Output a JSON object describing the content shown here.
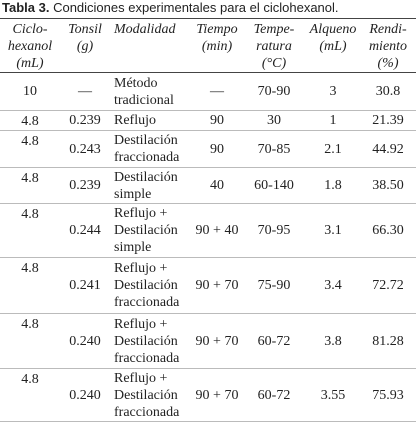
{
  "caption": {
    "label": "Tabla 3.",
    "text": "Condiciones experimentales para el ciclohexanol."
  },
  "table": {
    "headers": [
      [
        "Ciclo-",
        "hexanol",
        "(mL)"
      ],
      [
        "Tonsil",
        "(g)"
      ],
      [
        "Modalidad"
      ],
      [
        "Tiempo",
        "(min)"
      ],
      [
        "Tempe-",
        "ratura",
        "(°C)"
      ],
      [
        "Alqueno",
        "(mL)"
      ],
      [
        "Rendi-",
        "miento",
        "(%)"
      ]
    ],
    "rows": [
      [
        "10",
        "—",
        [
          "Método",
          "tradicional"
        ],
        "—",
        "70-90",
        "3",
        "30.8"
      ],
      [
        "4.8",
        "0.239",
        [
          "Reflujo"
        ],
        "90",
        "30",
        "1",
        "21.39"
      ],
      [
        "4.8",
        "0.243",
        [
          "Destilación",
          "fraccionada"
        ],
        "90",
        "70-85",
        "2.1",
        "44.92"
      ],
      [
        "4.8",
        "0.239",
        [
          "Destilación",
          "simple"
        ],
        "40",
        "60-140",
        "1.8",
        "38.50"
      ],
      [
        "4.8",
        "0.244",
        [
          "Reflujo +",
          "Destilación",
          "simple"
        ],
        "90 + 40",
        "70-95",
        "3.1",
        "66.30"
      ],
      [
        "4.8",
        "0.241",
        [
          "Reflujo +",
          "Destilación",
          "fraccionada"
        ],
        "90 + 70",
        "75-90",
        "3.4",
        "72.72"
      ],
      [
        "4.8",
        "0.240",
        [
          "Reflujo +",
          "Destilación",
          "fraccionada"
        ],
        "90 + 70",
        "60-72",
        "3.8",
        "81.28"
      ],
      [
        "4.8",
        "0.240",
        [
          "Reflujo +",
          "Destilación",
          "fraccionada"
        ],
        "90 + 70",
        "60-72",
        "3.55",
        "75.93"
      ]
    ]
  }
}
